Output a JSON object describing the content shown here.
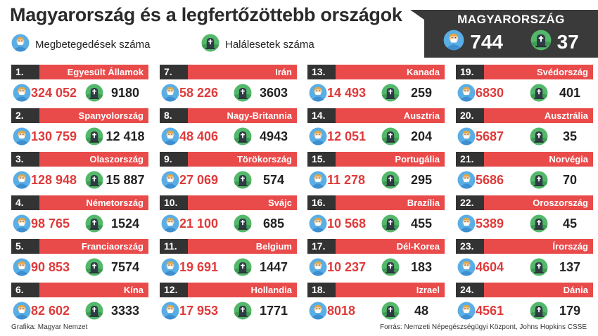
{
  "title": "Magyarország és a legfertőzöttebb országok",
  "legend": {
    "cases_label": "Megbetegedések száma",
    "deaths_label": "Halálesetek száma"
  },
  "hungary": {
    "name": "MAGYARORSZÁG",
    "cases": "744",
    "deaths": "37"
  },
  "colors": {
    "accent": "#e94b4b",
    "rank_bg": "#333333",
    "cases_text": "#e03a3a",
    "dark_box": "#3a3a3a"
  },
  "icons": {
    "cases": "sick-person-icon",
    "deaths": "tombstone-globe-icon"
  },
  "countries": [
    {
      "rank": "1.",
      "name": "Egyesült Államok",
      "cases": "324 052",
      "deaths": "9180"
    },
    {
      "rank": "2.",
      "name": "Spanyolország",
      "cases": "130 759",
      "deaths": "12 418"
    },
    {
      "rank": "3.",
      "name": "Olaszország",
      "cases": "128 948",
      "deaths": "15 887"
    },
    {
      "rank": "4.",
      "name": "Németország",
      "cases": "98 765",
      "deaths": "1524"
    },
    {
      "rank": "5.",
      "name": "Franciaország",
      "cases": "90 853",
      "deaths": "7574"
    },
    {
      "rank": "6.",
      "name": "Kína",
      "cases": "82 602",
      "deaths": "3333"
    },
    {
      "rank": "7.",
      "name": "Irán",
      "cases": "58 226",
      "deaths": "3603"
    },
    {
      "rank": "8.",
      "name": "Nagy-Britannia",
      "cases": "48 406",
      "deaths": "4943"
    },
    {
      "rank": "9.",
      "name": "Törökország",
      "cases": "27 069",
      "deaths": "574"
    },
    {
      "rank": "10.",
      "name": "Svájc",
      "cases": "21 100",
      "deaths": "685"
    },
    {
      "rank": "11.",
      "name": "Belgium",
      "cases": "19 691",
      "deaths": "1447"
    },
    {
      "rank": "12.",
      "name": "Hollandia",
      "cases": "17 953",
      "deaths": "1771"
    },
    {
      "rank": "13.",
      "name": "Kanada",
      "cases": "14 493",
      "deaths": "259"
    },
    {
      "rank": "14.",
      "name": "Ausztria",
      "cases": "12 051",
      "deaths": "204"
    },
    {
      "rank": "15.",
      "name": "Portugália",
      "cases": "11 278",
      "deaths": "295"
    },
    {
      "rank": "16.",
      "name": "Brazília",
      "cases": "10 568",
      "deaths": "455"
    },
    {
      "rank": "17.",
      "name": "Dél-Korea",
      "cases": "10 237",
      "deaths": "183"
    },
    {
      "rank": "18.",
      "name": "Izrael",
      "cases": "8018",
      "deaths": "48"
    },
    {
      "rank": "19.",
      "name": "Svédország",
      "cases": "6830",
      "deaths": "401"
    },
    {
      "rank": "20.",
      "name": "Ausztrália",
      "cases": "5687",
      "deaths": "35"
    },
    {
      "rank": "21.",
      "name": "Norvégia",
      "cases": "5686",
      "deaths": "70"
    },
    {
      "rank": "22.",
      "name": "Oroszország",
      "cases": "5389",
      "deaths": "45"
    },
    {
      "rank": "23.",
      "name": "Írország",
      "cases": "4604",
      "deaths": "137"
    },
    {
      "rank": "24.",
      "name": "Dánia",
      "cases": "4561",
      "deaths": "179"
    }
  ],
  "footer": {
    "credit": "Grafika: Magyar Nemzet",
    "source": "Forrás: Nemzeti Népegészségügyi Központ, Johns Hopkins CSSE"
  }
}
